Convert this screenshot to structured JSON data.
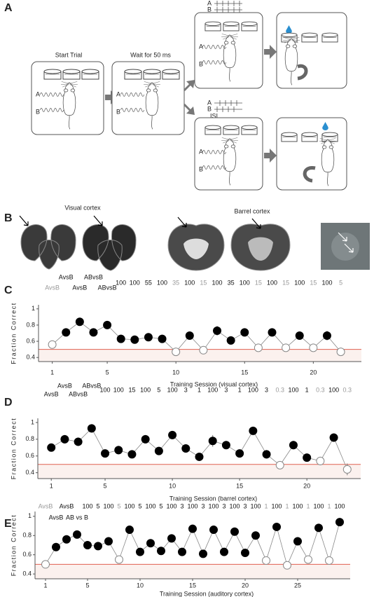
{
  "panels": {
    "A": {
      "label": "A",
      "steps": [
        "Start Trial",
        "Wait for 50 ms"
      ],
      "train_labels": [
        "A",
        "B"
      ],
      "isi": "ISI"
    },
    "B": {
      "label": "B",
      "titles": [
        "Visual cortex",
        "Barrel cortex"
      ]
    }
  },
  "chart_data": [
    {
      "type": "line",
      "panel": "C",
      "ylabel": "Fraction Correct",
      "xlabel": "Training Session (visual cortex)",
      "x": [
        1,
        2,
        3,
        4,
        5,
        6,
        7,
        8,
        9,
        10,
        11,
        12,
        13,
        14,
        15,
        16,
        17,
        18,
        19,
        20,
        21,
        22
      ],
      "values": [
        0.56,
        0.71,
        0.84,
        0.71,
        0.8,
        0.63,
        0.62,
        0.65,
        0.63,
        0.47,
        0.67,
        0.49,
        0.73,
        0.61,
        0.71,
        0.52,
        0.71,
        0.52,
        0.67,
        0.52,
        0.67,
        0.47
      ],
      "errors": [
        0.04,
        0.04,
        0.05,
        0.04,
        0.04,
        0.05,
        0.04,
        0.04,
        0.04,
        0.04,
        0.05,
        0.04,
        0.06,
        0.05,
        0.04,
        0.04,
        0.04,
        0.03,
        0.04,
        0.04,
        0.06,
        0.05
      ],
      "filled": [
        false,
        true,
        true,
        true,
        true,
        true,
        true,
        true,
        true,
        false,
        true,
        false,
        true,
        true,
        true,
        false,
        true,
        false,
        true,
        false,
        true,
        false
      ],
      "conditions": [
        "AvsB",
        "AvsB",
        "AvsB",
        "ABvsB",
        "ABvsB",
        "100",
        "100",
        "55",
        "100",
        "35",
        "100",
        "15",
        "100",
        "35",
        "100",
        "15",
        "100",
        "15",
        "100",
        "15",
        "100",
        "5"
      ],
      "color": "#000000",
      "line_color": "#888888",
      "reference_line": 0.5,
      "reference_color": "#e06050",
      "xlim": [
        0,
        23.5
      ],
      "ylim": [
        0.35,
        1.05
      ],
      "xticks": [
        1,
        5,
        10,
        15,
        20
      ],
      "yticks": [
        0.4,
        0.6,
        0.8,
        1
      ]
    },
    {
      "type": "line",
      "panel": "D",
      "ylabel": "Fraction Correct",
      "xlabel": "Training Session (barrel cortex)",
      "x": [
        1,
        2,
        3,
        4,
        5,
        6,
        7,
        8,
        9,
        10,
        11,
        12,
        13,
        14,
        15,
        16,
        17,
        18,
        19,
        20,
        21,
        22,
        23
      ],
      "values": [
        0.7,
        0.8,
        0.77,
        0.93,
        0.63,
        0.67,
        0.62,
        0.8,
        0.66,
        0.85,
        0.69,
        0.59,
        0.78,
        0.73,
        0.63,
        0.9,
        0.62,
        0.49,
        0.73,
        0.58,
        0.54,
        0.82,
        0.44
      ],
      "errors": [
        0.04,
        0.05,
        0.05,
        0.05,
        0.04,
        0.05,
        0.04,
        0.05,
        0.04,
        0.04,
        0.04,
        0.03,
        0.07,
        0.04,
        0.04,
        0.04,
        0.05,
        0.04,
        0.05,
        0.03,
        0.05,
        0.05,
        0.07
      ],
      "filled": [
        true,
        true,
        true,
        true,
        true,
        true,
        true,
        true,
        true,
        true,
        true,
        true,
        true,
        true,
        true,
        true,
        true,
        false,
        true,
        true,
        false,
        true,
        false
      ],
      "conditions": [
        "AvsB",
        "AvsB",
        "ABvsB",
        "ABvsB",
        "100",
        "100",
        "15",
        "100",
        "5",
        "100",
        "3",
        "1",
        "100",
        "3",
        "1",
        "100",
        "3",
        "0.3",
        "100",
        "1",
        "0.3",
        "100",
        "0.3"
      ],
      "color": "#000000",
      "line_color": "#888888",
      "reference_line": 0.5,
      "reference_color": "#e06050",
      "xlim": [
        0,
        24
      ],
      "ylim": [
        0.33,
        1.05
      ],
      "xticks": [
        1,
        5,
        10,
        15,
        20
      ],
      "yticks": [
        0.4,
        0.6,
        0.8,
        1
      ]
    },
    {
      "type": "line",
      "panel": "E",
      "ylabel": "Fraction Correct",
      "xlabel": "Training Session (auditory cortex)",
      "x": [
        1,
        2,
        3,
        4,
        5,
        6,
        7,
        8,
        9,
        10,
        11,
        12,
        13,
        14,
        15,
        16,
        17,
        18,
        19,
        20,
        21,
        22,
        23,
        24,
        25,
        26,
        27,
        28,
        29
      ],
      "values": [
        0.5,
        0.68,
        0.76,
        0.81,
        0.7,
        0.69,
        0.74,
        0.55,
        0.86,
        0.63,
        0.72,
        0.64,
        0.77,
        0.63,
        0.87,
        0.61,
        0.86,
        0.63,
        0.84,
        0.62,
        0.8,
        0.54,
        0.89,
        0.49,
        0.74,
        0.55,
        0.88,
        0.54,
        0.94
      ],
      "errors": [
        0.03,
        0.03,
        0.03,
        0.03,
        0.03,
        0.04,
        0.04,
        0.04,
        0.03,
        0.03,
        0.04,
        0.03,
        0.04,
        0.03,
        0.04,
        0.03,
        0.03,
        0.03,
        0.04,
        0.03,
        0.04,
        0.03,
        0.03,
        0.03,
        0.03,
        0.03,
        0.03,
        0.04,
        0.03
      ],
      "filled": [
        false,
        true,
        true,
        true,
        true,
        true,
        true,
        false,
        true,
        true,
        true,
        true,
        true,
        true,
        true,
        true,
        true,
        true,
        true,
        true,
        true,
        false,
        true,
        false,
        true,
        false,
        true,
        false,
        true
      ],
      "conditions": [
        "AvsB",
        "AvsB",
        "AvsB",
        "AB vs B",
        "100",
        "5",
        "100",
        "5",
        "100",
        "5",
        "100",
        "5",
        "100",
        "3",
        "100",
        "3",
        "100",
        "3",
        "100",
        "3",
        "100",
        "1",
        "100",
        "1",
        "100",
        "1",
        "100",
        "1",
        "100"
      ],
      "color": "#000000",
      "line_color": "#888888",
      "reference_line": 0.5,
      "reference_color": "#e06050",
      "xlim": [
        0,
        30
      ],
      "ylim": [
        0.35,
        1.05
      ],
      "xticks": [
        1,
        5,
        10,
        15,
        20,
        25
      ],
      "yticks": [
        0.4,
        0.6,
        0.8,
        1
      ]
    }
  ]
}
